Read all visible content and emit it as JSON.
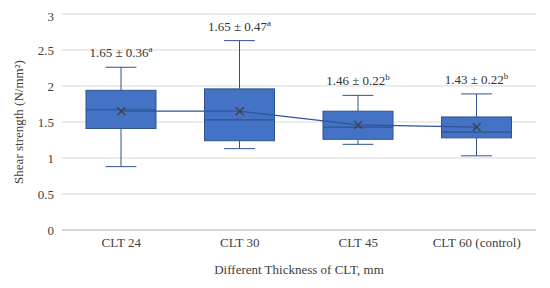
{
  "chart_data": {
    "type": "box",
    "xlabel": "Different Thickness of CLT, mm",
    "ylabel": "Shear strength (N/mm²)",
    "categories": [
      "CLT 24",
      "CLT 30",
      "CLT 45",
      "CLT 60 (control)"
    ],
    "stats": {
      "min": [
        0.88,
        1.13,
        1.19,
        1.03
      ],
      "q1": [
        1.41,
        1.24,
        1.26,
        1.28
      ],
      "median": [
        1.67,
        1.53,
        1.43,
        1.36
      ],
      "q3": [
        1.94,
        1.96,
        1.65,
        1.57
      ],
      "max": [
        2.26,
        2.63,
        1.87,
        1.89
      ],
      "mean": [
        1.65,
        1.65,
        1.46,
        1.43
      ]
    },
    "annotations": [
      {
        "text": "1.65 ± 0.36",
        "superscript": "a"
      },
      {
        "text": "1.65 ± 0.47",
        "superscript": "a"
      },
      {
        "text": "1.46 ± 0.22",
        "superscript": "b"
      },
      {
        "text": "1.43 ± 0.22",
        "superscript": "b"
      }
    ],
    "color": "#4472c4",
    "marker": "x",
    "ylim": [
      0,
      3
    ],
    "yticks": [
      0,
      0.5,
      1,
      1.5,
      2,
      2.5,
      3
    ],
    "grid": true
  }
}
